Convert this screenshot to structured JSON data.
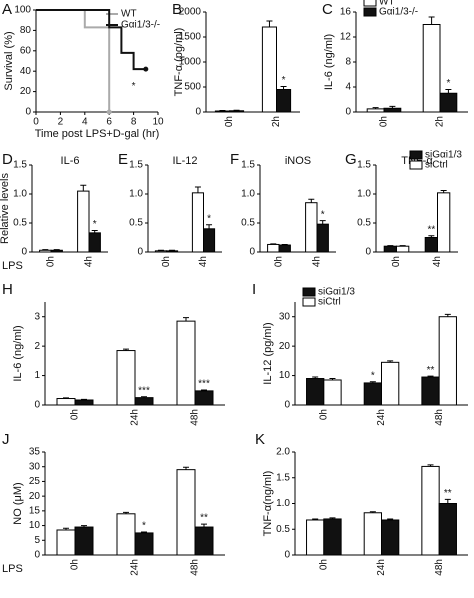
{
  "chart_data": [
    {
      "type": "line",
      "label": "A",
      "ylabel": "Survival (%)",
      "xlabel": "Time post LPS+D-gal (hr)",
      "xlim": [
        0,
        10
      ],
      "xticks": [
        0,
        2,
        4,
        6,
        8,
        10
      ],
      "ylim": [
        0,
        100
      ],
      "yticks": [
        0,
        20,
        40,
        60,
        80,
        100
      ],
      "series": [
        {
          "name": "WT",
          "color": "#aaaaaa",
          "x": [
            0,
            4,
            4,
            6,
            6
          ],
          "values": [
            100,
            100,
            83,
            83,
            0
          ]
        },
        {
          "name": "Gαi1/3-/-",
          "color": "#111111",
          "x": [
            0,
            6,
            6,
            7,
            7,
            8,
            8,
            9
          ],
          "values": [
            100,
            100,
            83,
            83,
            58,
            58,
            42,
            42
          ]
        }
      ],
      "annotation": "*",
      "legend": "upper right"
    },
    {
      "type": "bar",
      "label": "B",
      "ylabel": "TNF-α (pg/ml)",
      "categories": [
        "0h",
        "2h"
      ],
      "ylim": [
        0,
        2000
      ],
      "yticks": [
        0,
        500,
        1000,
        1500,
        2000
      ],
      "series": [
        {
          "name": "WT",
          "color": "#ffffff",
          "values": [
            20,
            1700
          ],
          "errors": [
            10,
            120
          ]
        },
        {
          "name": "Gαi1/3-/-",
          "color": "#111111",
          "values": [
            25,
            450
          ],
          "errors": [
            10,
            60
          ]
        }
      ],
      "annotations": [
        null,
        "*"
      ]
    },
    {
      "type": "bar",
      "label": "C",
      "ylabel": "IL-6 (ng/ml)",
      "categories": [
        "0h",
        "2h"
      ],
      "ylim": [
        0,
        16
      ],
      "yticks": [
        0,
        4,
        8,
        12,
        16
      ],
      "series": [
        {
          "name": "Gαi1/3-/-",
          "color": "#111111",
          "values": [
            0.6,
            3
          ],
          "errors": [
            0.3,
            0.6
          ]
        },
        {
          "name": "WT",
          "color": "#ffffff",
          "values": [
            0.5,
            14
          ],
          "errors": [
            0.2,
            1.2
          ]
        }
      ],
      "order": [
        1,
        0
      ],
      "annotations": [
        null,
        "*"
      ],
      "legend": "upper left"
    },
    {
      "type": "bar",
      "label": "D",
      "title": "IL-6",
      "ylabel": "Relative levels",
      "xlabel": "LPS",
      "categories": [
        "0h",
        "4h"
      ],
      "ylim": [
        0,
        1.5
      ],
      "yticks": [
        0,
        0.5,
        {
          "value": 1,
          "label": "1.0"
        },
        1.5
      ],
      "series": [
        {
          "name": "siCtrl",
          "color": "#ffffff",
          "values": [
            0.03,
            1.05
          ],
          "errors": [
            0.01,
            0.1
          ]
        },
        {
          "name": "siGαi1/3",
          "color": "#111111",
          "values": [
            0.03,
            0.33
          ],
          "errors": [
            0.01,
            0.04
          ]
        }
      ],
      "annotations": [
        null,
        "*"
      ]
    },
    {
      "type": "bar",
      "label": "E",
      "title": "IL-12",
      "categories": [
        "0h",
        "4h"
      ],
      "ylim": [
        0,
        1.5
      ],
      "yticks": [
        0,
        0.5,
        {
          "value": 1,
          "label": "1.0"
        },
        1.5
      ],
      "series": [
        {
          "name": "siCtrl",
          "color": "#ffffff",
          "values": [
            0.02,
            1.02
          ],
          "errors": [
            0.01,
            0.1
          ]
        },
        {
          "name": "siGαi1/3",
          "color": "#111111",
          "values": [
            0.02,
            0.4
          ],
          "errors": [
            0.01,
            0.07
          ]
        }
      ],
      "annotations": [
        null,
        "*"
      ]
    },
    {
      "type": "bar",
      "label": "F",
      "title": "iNOS",
      "categories": [
        "0h",
        "4h"
      ],
      "ylim": [
        0,
        1.5
      ],
      "yticks": [
        0,
        0.5,
        {
          "value": 1,
          "label": "1.0"
        },
        1.5
      ],
      "series": [
        {
          "name": "siCtrl",
          "color": "#ffffff",
          "values": [
            0.13,
            0.85
          ],
          "errors": [
            0.01,
            0.06
          ]
        },
        {
          "name": "siGαi1/3",
          "color": "#111111",
          "values": [
            0.12,
            0.48
          ],
          "errors": [
            0.01,
            0.06
          ]
        }
      ],
      "annotations": [
        null,
        "*"
      ]
    },
    {
      "type": "bar",
      "label": "G",
      "title": "TNF-α",
      "categories": [
        "0h",
        "4h"
      ],
      "ylim": [
        0,
        1.5
      ],
      "yticks": [
        0,
        0.5,
        {
          "value": 1,
          "label": "1.0"
        },
        1.5
      ],
      "series": [
        {
          "name": "siCtrl",
          "color": "#ffffff",
          "values": [
            0.1,
            1.02
          ],
          "errors": [
            0.01,
            0.04
          ]
        },
        {
          "name": "siGαi1/3",
          "color": "#111111",
          "values": [
            0.1,
            0.25
          ],
          "errors": [
            0.01,
            0.03
          ]
        }
      ],
      "order": [
        1,
        0
      ],
      "annotations": [
        null,
        "**"
      ],
      "legend": "upper right"
    },
    {
      "type": "bar",
      "label": "H",
      "ylabel": "IL-6 (ng/ml)",
      "categories": [
        "0h",
        "24h",
        "48h"
      ],
      "ylim": [
        0,
        3.5
      ],
      "yticks": [
        0,
        1,
        2,
        3
      ],
      "series": [
        {
          "name": "siCtrl",
          "color": "#ffffff",
          "values": [
            0.22,
            1.85,
            2.85
          ],
          "errors": [
            0.02,
            0.05,
            0.12
          ]
        },
        {
          "name": "siGαi1/3",
          "color": "#111111",
          "values": [
            0.17,
            0.25,
            0.48
          ],
          "errors": [
            0.02,
            0.03,
            0.03
          ]
        }
      ],
      "annotations": [
        null,
        "***",
        "***"
      ]
    },
    {
      "type": "bar",
      "label": "I",
      "ylabel": "IL-12 (pg/ml)",
      "categories": [
        "0h",
        "24h",
        "48h"
      ],
      "ylim": [
        0,
        35
      ],
      "yticks": [
        0,
        10,
        20,
        30
      ],
      "series": [
        {
          "name": "siCtrl",
          "color": "#ffffff",
          "values": [
            8.5,
            14.5,
            30
          ],
          "errors": [
            0.5,
            0.5,
            0.8
          ]
        },
        {
          "name": "siGαi1/3",
          "color": "#111111",
          "values": [
            9,
            7.5,
            9.5
          ],
          "errors": [
            0.5,
            0.4,
            0.3
          ]
        }
      ],
      "order": [
        1,
        0
      ],
      "annotations": [
        null,
        "*",
        "**"
      ],
      "legend": "upper left"
    },
    {
      "type": "bar",
      "label": "J",
      "ylabel": "NO (μM)",
      "xlabel": "LPS",
      "categories": [
        "0h",
        "24h",
        "48h"
      ],
      "ylim": [
        0,
        35
      ],
      "yticks": [
        0,
        5,
        10,
        15,
        20,
        25,
        30,
        35
      ],
      "series": [
        {
          "name": "siCtrl",
          "color": "#ffffff",
          "values": [
            8.5,
            14,
            29
          ],
          "errors": [
            0.6,
            0.5,
            0.8
          ]
        },
        {
          "name": "siGαi1/3",
          "color": "#111111",
          "values": [
            9.5,
            7.5,
            9.5
          ],
          "errors": [
            0.5,
            0.3,
            1
          ]
        }
      ],
      "annotations": [
        null,
        "*",
        "**"
      ]
    },
    {
      "type": "bar",
      "label": "K",
      "ylabel": "TNF-α(ng/ml)",
      "categories": [
        "0h",
        "24h",
        "48h"
      ],
      "ylim": [
        0,
        2
      ],
      "yticks": [
        0,
        0.5,
        {
          "value": 1,
          "label": "1.0"
        },
        1.5,
        {
          "value": 2,
          "label": "2.0"
        }
      ],
      "series": [
        {
          "name": "siCtrl",
          "color": "#ffffff",
          "values": [
            0.68,
            0.82,
            1.72
          ],
          "errors": [
            0.02,
            0.02,
            0.03
          ]
        },
        {
          "name": "siGαi1/3",
          "color": "#111111",
          "values": [
            0.7,
            0.68,
            1.0
          ],
          "errors": [
            0.02,
            0.02,
            0.08
          ]
        }
      ],
      "annotations": [
        null,
        null,
        "**"
      ]
    }
  ]
}
